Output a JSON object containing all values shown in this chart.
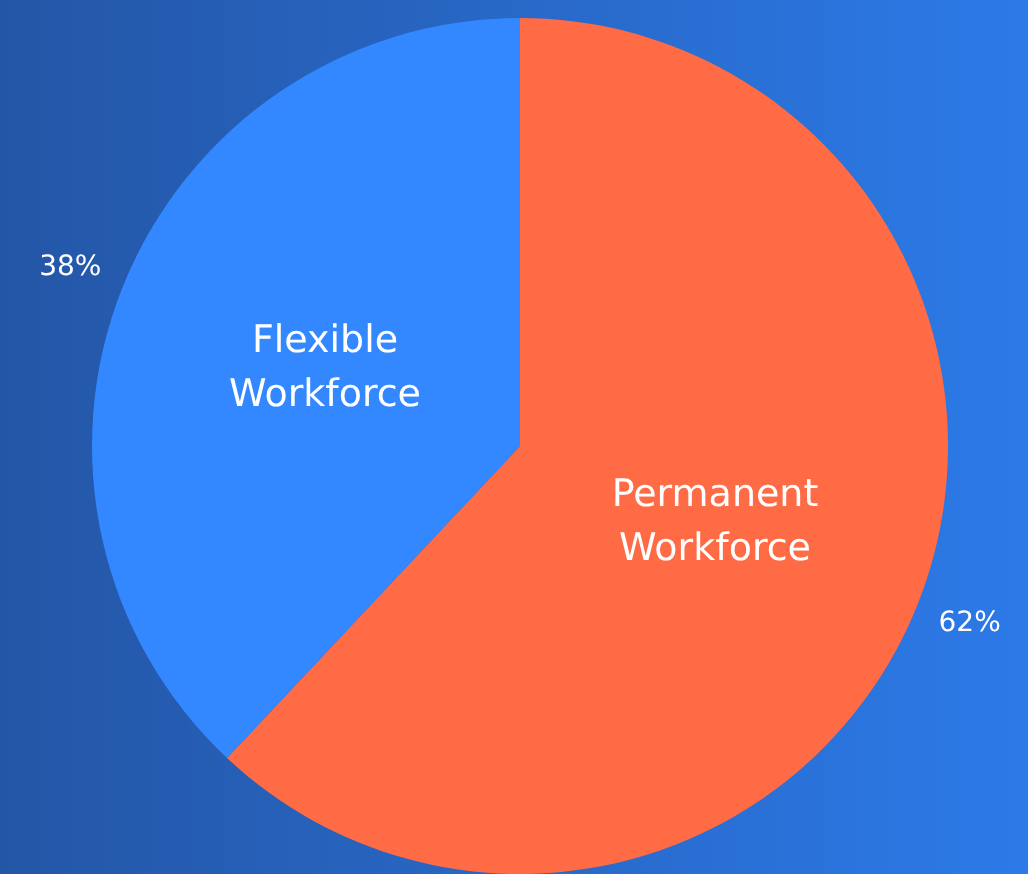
{
  "chart_data": {
    "type": "pie",
    "categories": [
      "Permanent Workforce",
      "Flexible Workforce"
    ],
    "values": [
      62,
      38
    ],
    "colors": [
      "#ff6b45",
      "#3388ff"
    ],
    "value_labels": [
      "62%",
      "38%"
    ],
    "legend": false
  }
}
